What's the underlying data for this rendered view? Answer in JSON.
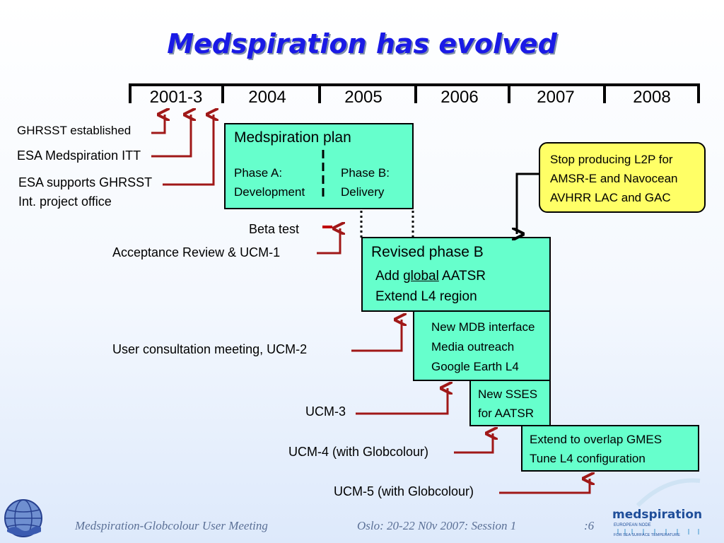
{
  "title": "Medspiration has evolved",
  "timeline": {
    "years": [
      "2001-3",
      "2004",
      "2005",
      "2006",
      "2007",
      "2008"
    ]
  },
  "milestones": {
    "ghrsst": "GHRSST established",
    "esa_itt": "ESA Medspiration ITT",
    "esa_supports_1": "ESA supports GHRSST",
    "esa_supports_2": "Int. project office",
    "beta_test": "Beta test",
    "acceptance": "Acceptance Review & UCM-1",
    "ucm2": "User consultation meeting, UCM-2",
    "ucm3": "UCM-3",
    "ucm4": "UCM-4 (with Globcolour)",
    "ucm5": "UCM-5 (with Globcolour)"
  },
  "boxes": {
    "plan": {
      "title": "Medspiration plan",
      "phase_a_1": "Phase A:",
      "phase_a_2": "Development",
      "phase_b_1": "Phase B:",
      "phase_b_2": "Delivery"
    },
    "revised": {
      "title": "Revised phase B",
      "line1_pre": "Add",
      "line1_em": "global",
      "line1_post": "AATSR",
      "line2": "Extend L4 region"
    },
    "mdb": {
      "line1": "New MDB interface",
      "line2": "Media outreach",
      "line3": "Google Earth L4"
    },
    "sses": {
      "line1": "New SSES",
      "line2": "for AATSR"
    },
    "gmes": {
      "line1": "Extend to overlap GMES",
      "line2": "Tune L4 configuration"
    },
    "stop": {
      "line1": "Stop producing L2P for",
      "line2": "AMSR-E and Navocean",
      "line3": "AVHRR LAC and GAC"
    }
  },
  "footer": {
    "meeting": "Medspiration-Globcolour User Meeting",
    "place": "Oslo: 20-22 N0v 2007:  Session 1",
    "page": ":6",
    "logo_text": "medspiration",
    "logo_sub1": "EUROPEAN NODE",
    "logo_sub2": "FOR SEA SURFACE TEMPERATURE"
  },
  "colors": {
    "title": "#1a1ae6",
    "box_fill": "#66ffcc",
    "note_fill": "#ffff66",
    "arrow": "#a01818"
  }
}
